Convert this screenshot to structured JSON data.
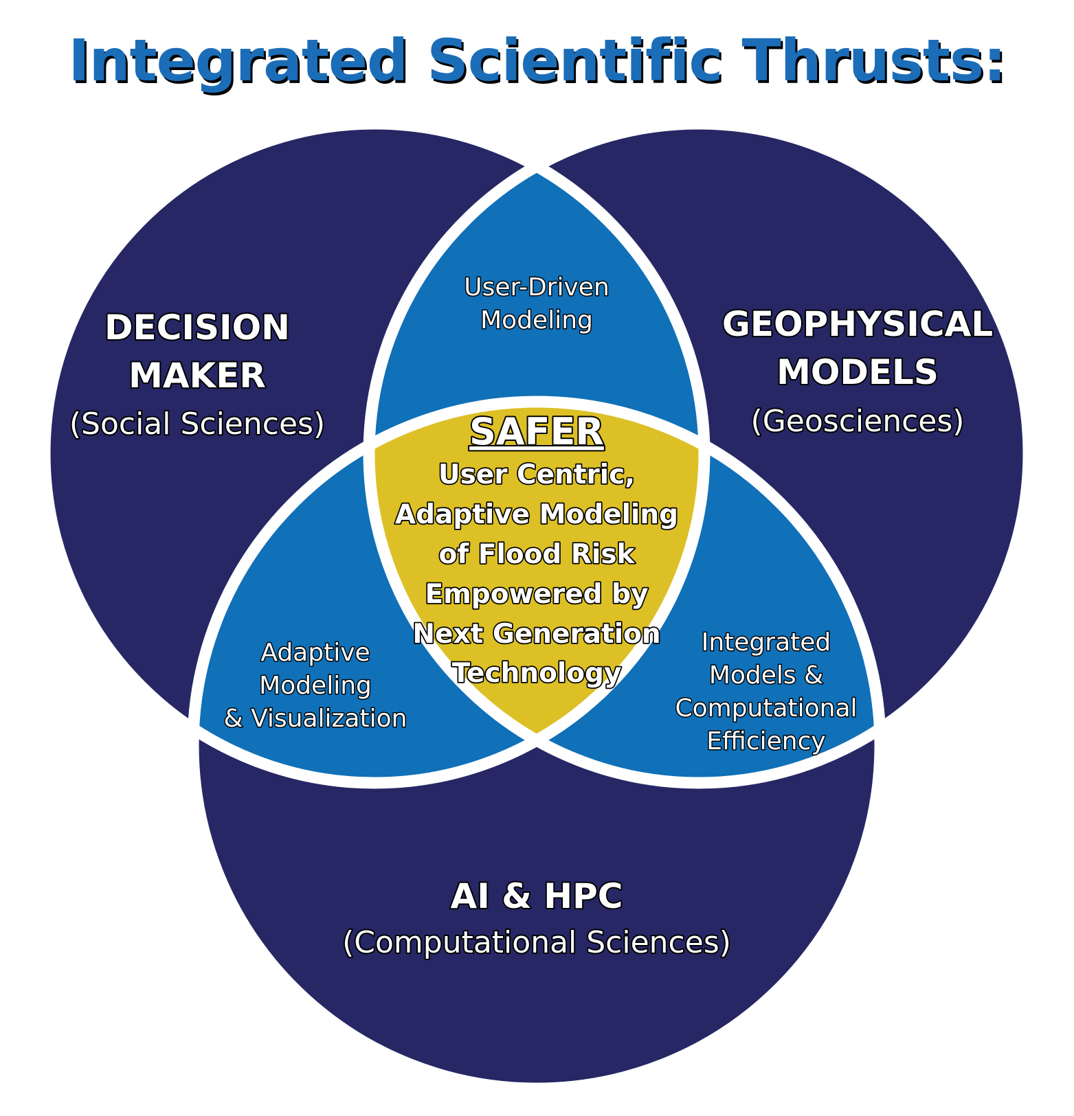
{
  "title": "Integrated Scientific Thrusts:",
  "colors": {
    "outer_circle": "#262764",
    "pair_overlap": "#1070b8",
    "center": "#dcc026",
    "title": "#1b6db8",
    "outline": "#ffffff"
  },
  "sets": {
    "decision_maker": {
      "line1": "DECISION",
      "line2": "MAKER",
      "line3": "(Social Sciences)"
    },
    "geophysical_models": {
      "line1": "GEOPHYSICAL",
      "line2": "MODELS",
      "line3": "(Geosciences)"
    },
    "ai_hpc": {
      "line1": "AI & HPC",
      "line2": "(Computational Sciences)"
    }
  },
  "intersections": {
    "decision_geophysical": [
      "User-Driven",
      "Modeling"
    ],
    "decision_ai": [
      "Adaptive",
      "Modeling",
      "& Visualization"
    ],
    "geophysical_ai": [
      "Integrated",
      "Models &",
      "Computational",
      "Efficiency"
    ]
  },
  "center": {
    "heading": "SAFER",
    "lines": [
      "User Centric,",
      "Adaptive Modeling",
      "of Flood Risk",
      "Empowered by",
      "Next Generation",
      "Technology"
    ]
  }
}
